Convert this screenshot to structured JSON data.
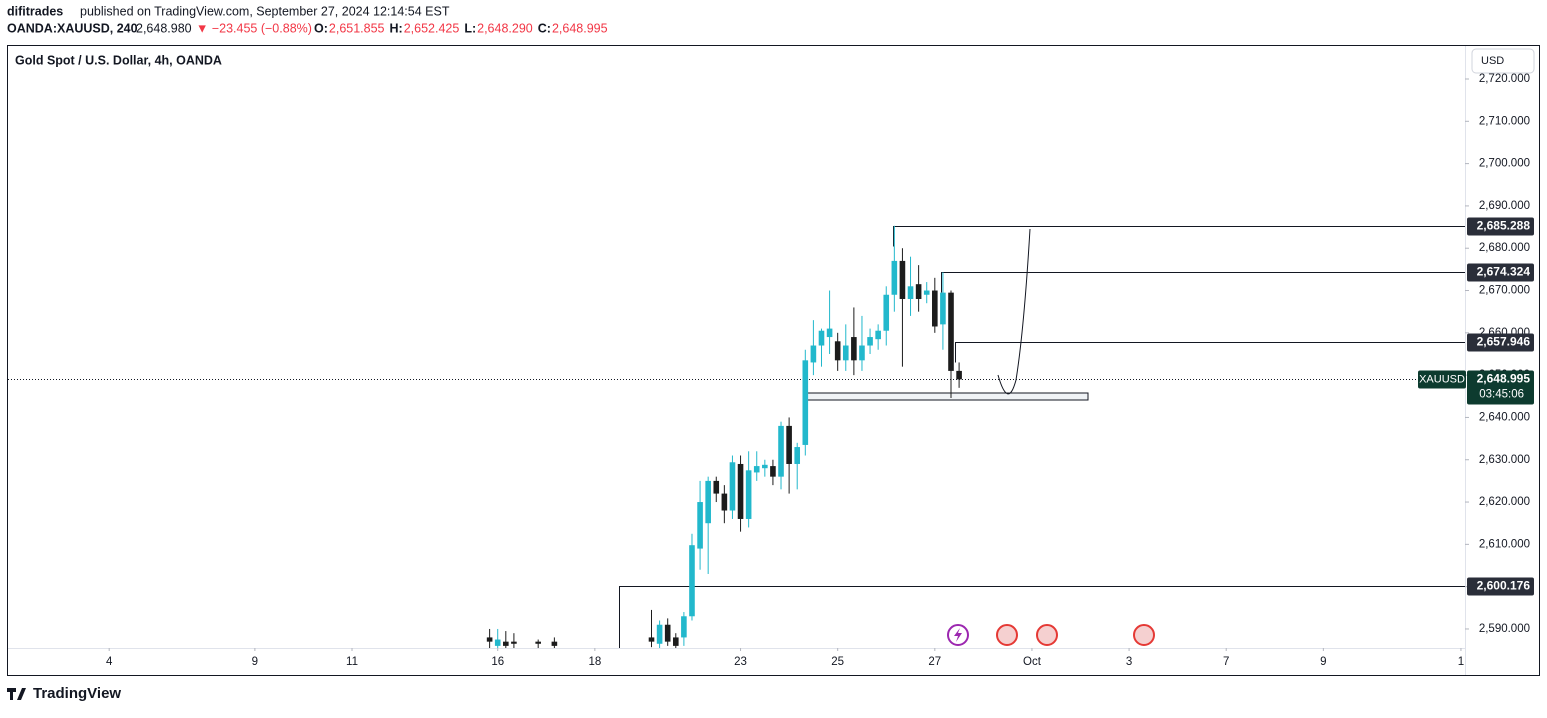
{
  "header": {
    "publisher": "difitrades",
    "published": "published on TradingView.com, September 27, 2024 12:14:54 EST",
    "symbol": "OANDA:XAUUSD, 240",
    "last": "2,648.980",
    "change": "▼ −23.455 (−0.88%)",
    "ohlc": [
      {
        "key": "O:",
        "value": "2,651.855"
      },
      {
        "key": "H:",
        "value": "2,652.425"
      },
      {
        "key": "L:",
        "value": "2,648.290"
      },
      {
        "key": "C:",
        "value": "2,648.995"
      }
    ]
  },
  "chart_data": {
    "type": "candlestick",
    "title": "Gold Spot / U.S. Dollar, 4h, OANDA",
    "currency": "USD",
    "up_color": "#22b8cc",
    "down_color": "#1c1c1c",
    "x": [
      59,
      60,
      61,
      62,
      65,
      67,
      79,
      80,
      81,
      82,
      83,
      84,
      85,
      86,
      87,
      88,
      89,
      90,
      91,
      92,
      93,
      94,
      95,
      96,
      97,
      98,
      99,
      100,
      101,
      102,
      103,
      104,
      105,
      106,
      107,
      108,
      109,
      110,
      111,
      112,
      113,
      114,
      115,
      116,
      117
    ],
    "open": [
      2588,
      2586,
      2587,
      2587,
      2587,
      2587,
      2588,
      2586.5,
      2591,
      2588,
      2588,
      2593,
      2609,
      2615,
      2625,
      2622,
      2618,
      2629,
      2616,
      2627,
      2628,
      2628.5,
      2626,
      2638,
      2629,
      2633.5,
      2653,
      2657,
      2659,
      2658,
      2653.5,
      2659,
      2653.5,
      2657,
      2658.5,
      2660.5,
      2669,
      2677,
      2668,
      2671.5,
      2669,
      2670,
      2662,
      2669.5,
      2651
    ],
    "high": [
      2590,
      2590,
      2589.5,
      2589,
      2587.5,
      2588,
      2594.5,
      2592,
      2592.5,
      2589,
      2594,
      2612.5,
      2625,
      2626,
      2626,
      2624,
      2631,
      2631,
      2632,
      2632,
      2630,
      2630,
      2639,
      2640,
      2634,
      2656,
      2663,
      2661,
      2670,
      2660,
      2662,
      2666,
      2664,
      2661,
      2662,
      2671,
      2685.3,
      2680,
      2678,
      2676,
      2672,
      2673,
      2674.3,
      2670,
      2653
    ],
    "low": [
      2585.5,
      2585,
      2585,
      2585.5,
      2585.5,
      2585.5,
      2585.7,
      2585.5,
      2586,
      2585,
      2586,
      2592,
      2604,
      2603,
      2620,
      2615,
      2616,
      2613,
      2614,
      2625,
      2626,
      2624,
      2623,
      2622,
      2623,
      2631,
      2650,
      2652,
      2655,
      2651,
      2651,
      2650,
      2651,
      2655,
      2656,
      2657,
      2665,
      2652,
      2664,
      2665,
      2667,
      2660,
      2656,
      2644.6,
      2647
    ],
    "close": [
      2587,
      2587.5,
      2586,
      2586.5,
      2586.5,
      2586,
      2587,
      2591,
      2587,
      2586,
      2593,
      2609.8,
      2620,
      2625,
      2622,
      2618,
      2629.4,
      2616,
      2627.5,
      2628.5,
      2628.8,
      2626,
      2638,
      2629,
      2633,
      2653.5,
      2657,
      2660.5,
      2661,
      2653.5,
      2657,
      2653.5,
      2657,
      2659,
      2660.5,
      2669,
      2677,
      2668,
      2671,
      2668,
      2670,
      2661.5,
      2669.5,
      2651,
      2649
    ],
    "xlim": [
      -0.5,
      179.5
    ],
    "xticks": [
      {
        "value": 12,
        "label": "4"
      },
      {
        "value": 30,
        "label": "9"
      },
      {
        "value": 42,
        "label": "11"
      },
      {
        "value": 60,
        "label": "16"
      },
      {
        "value": 72,
        "label": "18"
      },
      {
        "value": 90,
        "label": "23"
      },
      {
        "value": 102,
        "label": "25"
      },
      {
        "value": 114,
        "label": "27"
      },
      {
        "value": 126,
        "label": "Oct"
      },
      {
        "value": 138,
        "label": "3"
      },
      {
        "value": 150,
        "label": "7"
      },
      {
        "value": 162,
        "label": "9"
      },
      {
        "value": 179,
        "label": "1"
      }
    ],
    "ylim": [
      2585.5,
      2727.8
    ],
    "yticks": [
      {
        "value": 2590,
        "label": "2,590.000"
      },
      {
        "value": 2600,
        "label": "2,600.000"
      },
      {
        "value": 2610,
        "label": "2,610.000"
      },
      {
        "value": 2620,
        "label": "2,620.000"
      },
      {
        "value": 2630,
        "label": "2,630.000"
      },
      {
        "value": 2640,
        "label": "2,640.000"
      },
      {
        "value": 2650,
        "label": "2,650.000"
      },
      {
        "value": 2660,
        "label": "2,660.000"
      },
      {
        "value": 2670,
        "label": "2,670.000"
      },
      {
        "value": 2680,
        "label": "2,680.000"
      },
      {
        "value": 2690,
        "label": "2,690.000"
      },
      {
        "value": 2700,
        "label": "2,700.000"
      },
      {
        "value": 2710,
        "label": "2,710.000"
      },
      {
        "value": 2720,
        "label": "2,720.000"
      }
    ],
    "levels": [
      {
        "value": 2685.288,
        "label": "2,685.288"
      },
      {
        "value": 2674.324,
        "label": "2,674.324"
      },
      {
        "value": 2657.946,
        "label": "2,657.946"
      },
      {
        "value": 2600.176,
        "label": "2,600.176"
      }
    ],
    "price_label": {
      "symbol": "XAUUSD",
      "value": 2648.995,
      "label": "2,648.995",
      "countdown": "03:45:06"
    }
  },
  "footer": {
    "brand": "TradingView"
  }
}
